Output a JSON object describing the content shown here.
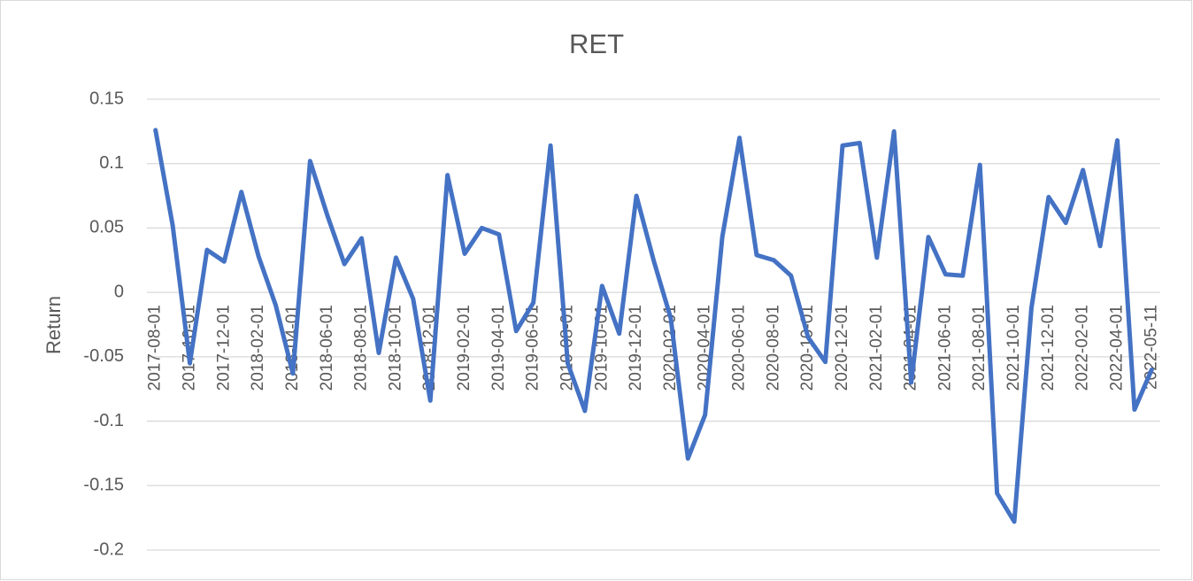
{
  "chart_data": {
    "type": "line",
    "title": "RET",
    "y_label": "Return",
    "categories": [
      "2017-08-01",
      null,
      "2017-10-01",
      null,
      "2017-12-01",
      null,
      "2018-02-01",
      null,
      "2018-04-01",
      null,
      "2018-06-01",
      null,
      "2018-08-01",
      null,
      "2018-10-01",
      null,
      "2018-12-01",
      null,
      "2019-02-01",
      null,
      "2019-04-01",
      null,
      "2019-06-01",
      null,
      "2019-08-01",
      null,
      "2019-10-01",
      null,
      "2019-12-01",
      null,
      "2020-02-01",
      null,
      "2020-04-01",
      null,
      "2020-06-01",
      null,
      "2020-08-01",
      null,
      "2020-10-01",
      null,
      "2020-12-01",
      null,
      "2021-02-01",
      null,
      "2021-04-01",
      null,
      "2021-06-01",
      null,
      "2021-08-01",
      null,
      "2021-10-01",
      null,
      "2021-12-01",
      null,
      "2022-02-01",
      null,
      "2022-04-01",
      null,
      "2022-05-11"
    ],
    "series": [
      {
        "name": "RET",
        "color": "#4472c4",
        "values": [
          0.126,
          0.052,
          -0.055,
          0.033,
          0.024,
          0.078,
          0.028,
          -0.01,
          -0.063,
          0.102,
          0.06,
          0.022,
          0.042,
          -0.047,
          0.027,
          -0.005,
          -0.084,
          0.091,
          0.03,
          0.05,
          0.045,
          -0.03,
          -0.008,
          0.114,
          -0.055,
          -0.092,
          0.005,
          -0.032,
          0.075,
          0.025,
          -0.02,
          -0.129,
          -0.095,
          0.043,
          0.12,
          0.029,
          0.025,
          0.013,
          -0.035,
          -0.054,
          0.114,
          0.116,
          0.027,
          0.125,
          -0.07,
          0.043,
          0.014,
          0.013,
          0.099,
          -0.156,
          -0.178,
          -0.012,
          0.074,
          0.054,
          0.095,
          0.036,
          0.118,
          -0.091,
          -0.06
        ]
      }
    ],
    "ylim": [
      -0.2,
      0.15
    ],
    "yticks": [
      -0.2,
      -0.15,
      -0.1,
      -0.05,
      0,
      0.05,
      0.1,
      0.15
    ],
    "grid": true
  }
}
